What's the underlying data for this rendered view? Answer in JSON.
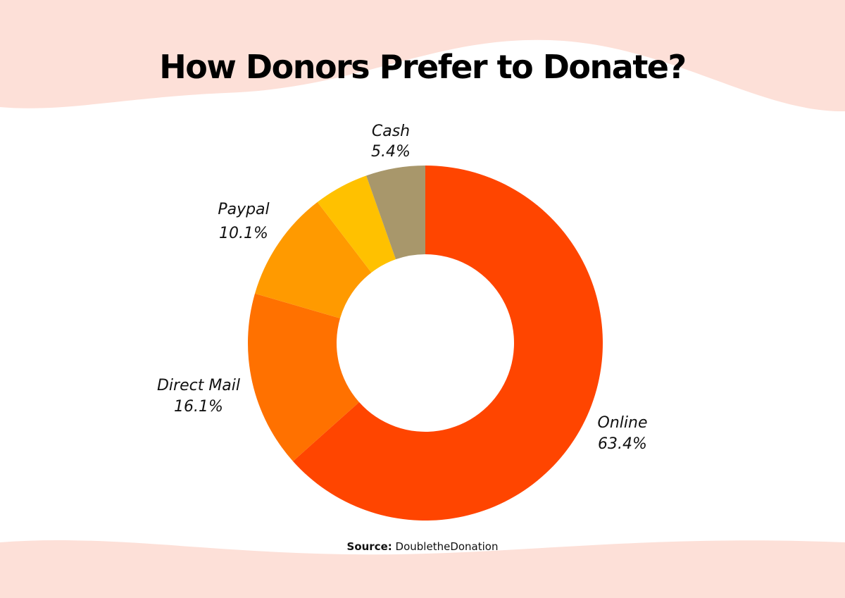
{
  "title": "How Donors Prefer to Donate?",
  "source": {
    "label": "Source:",
    "value": "DoubletheDonation"
  },
  "colors": {
    "background": "#ffffff",
    "wave": "#fde0d8"
  },
  "chart_data": {
    "type": "pie",
    "donut": true,
    "title": "How Donors Prefer to Donate?",
    "legend": "none",
    "slices": [
      {
        "label": "Online",
        "value": 63.4,
        "value_label": "63.4%",
        "color": "#ff4500"
      },
      {
        "label": "Direct Mail",
        "value": 16.1,
        "value_label": "16.1%",
        "color": "#ff7100"
      },
      {
        "label": "Paypal",
        "value": 10.1,
        "value_label": "10.1%",
        "color": "#ff9a00"
      },
      {
        "label": "",
        "value": 5.0,
        "value_label": "",
        "color": "#ffc100"
      },
      {
        "label": "Cash",
        "value": 5.4,
        "value_label": "5.4%",
        "color": "#a8976b"
      }
    ]
  }
}
